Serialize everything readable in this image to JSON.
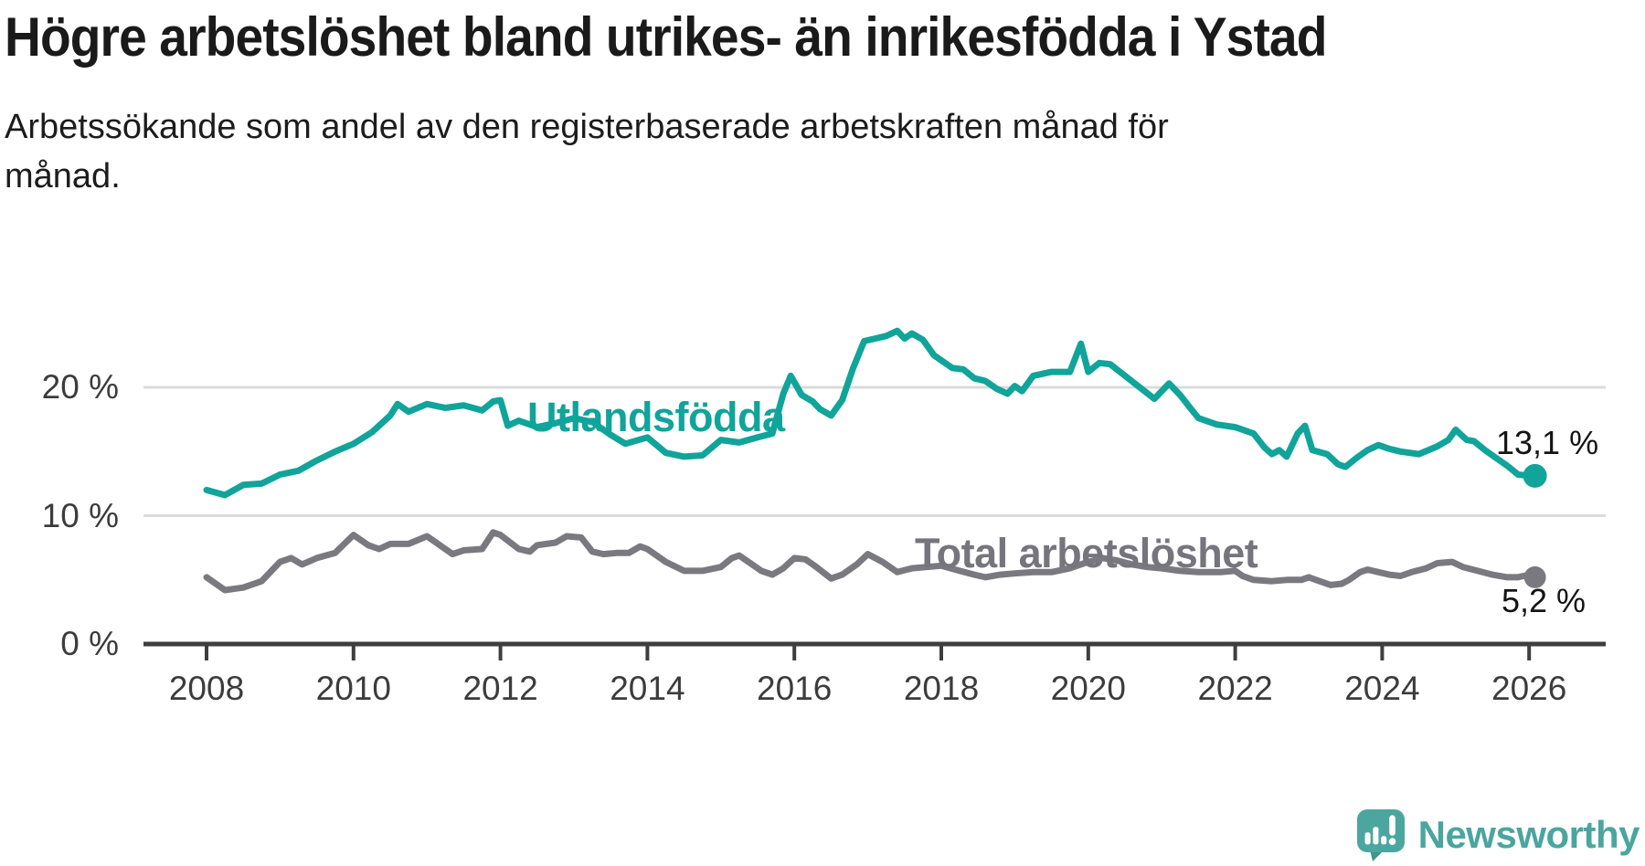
{
  "header": {
    "title": "Högre arbetslöshet bland utrikes- än inrikesfödda i Ystad",
    "subtitle_lines": [
      "Arbetssökande som andel av den registerbaserade arbetskraften månad för",
      "månad."
    ]
  },
  "footer": {
    "brand": "Newsworthy"
  },
  "chart_data": {
    "type": "line",
    "title": "Högre arbetslöshet bland utrikes- än inrikesfödda i Ystad",
    "subtitle": "Arbetssökande som andel av den registerbaserade arbetskraften månad för månad.",
    "xlabel": "",
    "ylabel": "",
    "unit": "%",
    "grid": "horizontal",
    "legend": "inline-labels",
    "xlim": [
      2007.5,
      2026.6
    ],
    "ylim": [
      0,
      26
    ],
    "x_axis": {
      "ticks": [
        2008,
        2010,
        2012,
        2014,
        2016,
        2018,
        2020,
        2022,
        2024,
        2026
      ]
    },
    "y_axis": {
      "ticks": [
        0,
        10,
        20
      ],
      "labels": [
        "0 %",
        "10 %",
        "20 %"
      ]
    },
    "style": {
      "grid_color": "#dbdbdb",
      "axis_color": "#3e3e3e",
      "background": "#ffffff"
    },
    "series": [
      {
        "name": "Utlandsfödda",
        "color": "#10a49a",
        "end_label": "13,1 %",
        "end_value": 13.1,
        "dot_radius": 13,
        "x": [
          2008.0,
          2008.25,
          2008.5,
          2008.75,
          2009.0,
          2009.25,
          2009.5,
          2009.75,
          2010.0,
          2010.25,
          2010.5,
          2010.6,
          2010.75,
          2011.0,
          2011.25,
          2011.5,
          2011.75,
          2011.9,
          2012.0,
          2012.1,
          2012.25,
          2012.5,
          2012.75,
          2013.0,
          2013.25,
          2013.5,
          2013.7,
          2014.0,
          2014.25,
          2014.5,
          2014.75,
          2015.0,
          2015.25,
          2015.5,
          2015.7,
          2015.85,
          2015.95,
          2016.1,
          2016.25,
          2016.35,
          2016.5,
          2016.65,
          2016.8,
          2016.95,
          2017.1,
          2017.25,
          2017.4,
          2017.5,
          2017.6,
          2017.75,
          2017.9,
          2018.0,
          2018.15,
          2018.3,
          2018.45,
          2018.6,
          2018.75,
          2018.9,
          2019.0,
          2019.1,
          2019.25,
          2019.5,
          2019.75,
          2019.9,
          2020.0,
          2020.15,
          2020.3,
          2020.5,
          2020.7,
          2020.9,
          2021.0,
          2021.1,
          2021.25,
          2021.4,
          2021.5,
          2021.75,
          2022.0,
          2022.25,
          2022.4,
          2022.5,
          2022.6,
          2022.7,
          2022.85,
          2022.95,
          2023.05,
          2023.25,
          2023.4,
          2023.5,
          2023.65,
          2023.8,
          2023.95,
          2024.1,
          2024.25,
          2024.5,
          2024.75,
          2024.9,
          2025.0,
          2025.15,
          2025.25,
          2025.4,
          2025.55,
          2025.7,
          2025.85,
          2026.0,
          2026.08
        ],
        "values": [
          12.0,
          11.6,
          12.4,
          12.5,
          13.2,
          13.5,
          14.3,
          15.0,
          15.6,
          16.5,
          17.8,
          18.7,
          18.1,
          18.7,
          18.4,
          18.6,
          18.2,
          18.9,
          19.0,
          17.0,
          17.4,
          16.9,
          17.2,
          17.6,
          17.3,
          16.3,
          15.6,
          16.1,
          14.9,
          14.6,
          14.7,
          15.9,
          15.7,
          16.1,
          16.4,
          19.5,
          20.9,
          19.4,
          18.9,
          18.3,
          17.8,
          19.0,
          21.5,
          23.6,
          23.8,
          24.0,
          24.4,
          23.8,
          24.2,
          23.7,
          22.5,
          22.1,
          21.5,
          21.4,
          20.7,
          20.5,
          19.9,
          19.5,
          20.1,
          19.7,
          20.9,
          21.2,
          21.2,
          23.4,
          21.2,
          21.9,
          21.8,
          20.9,
          20.0,
          19.1,
          19.7,
          20.3,
          19.4,
          18.3,
          17.6,
          17.1,
          16.9,
          16.4,
          15.3,
          14.8,
          15.1,
          14.6,
          16.4,
          17.0,
          15.1,
          14.8,
          14.0,
          13.8,
          14.5,
          15.1,
          15.5,
          15.2,
          15.0,
          14.8,
          15.4,
          15.9,
          16.7,
          15.9,
          15.8,
          15.1,
          14.5,
          13.9,
          13.2,
          13.1,
          13.1
        ]
      },
      {
        "name": "Total arbetslöshet",
        "color": "#7a7980",
        "label_color": "#76757e",
        "end_label": "5,2 %",
        "end_value": 5.2,
        "dot_radius": 12,
        "x": [
          2008.0,
          2008.25,
          2008.5,
          2008.75,
          2009.0,
          2009.15,
          2009.3,
          2009.5,
          2009.75,
          2010.0,
          2010.2,
          2010.35,
          2010.5,
          2010.75,
          2011.0,
          2011.2,
          2011.35,
          2011.5,
          2011.75,
          2011.9,
          2012.0,
          2012.25,
          2012.4,
          2012.5,
          2012.75,
          2012.9,
          2013.1,
          2013.25,
          2013.4,
          2013.6,
          2013.75,
          2013.9,
          2014.0,
          2014.25,
          2014.5,
          2014.75,
          2015.0,
          2015.15,
          2015.25,
          2015.4,
          2015.55,
          2015.7,
          2015.85,
          2016.0,
          2016.15,
          2016.3,
          2016.5,
          2016.65,
          2016.85,
          2017.0,
          2017.2,
          2017.4,
          2017.6,
          2017.8,
          2018.0,
          2018.25,
          2018.45,
          2018.6,
          2018.8,
          2019.0,
          2019.25,
          2019.5,
          2019.75,
          2020.0,
          2020.2,
          2020.4,
          2020.6,
          2020.8,
          2021.0,
          2021.25,
          2021.5,
          2021.8,
          2022.0,
          2022.1,
          2022.25,
          2022.5,
          2022.7,
          2022.9,
          2023.0,
          2023.1,
          2023.3,
          2023.45,
          2023.55,
          2023.7,
          2023.8,
          2023.95,
          2024.1,
          2024.25,
          2024.4,
          2024.6,
          2024.75,
          2024.95,
          2025.1,
          2025.3,
          2025.5,
          2025.7,
          2025.85,
          2026.0,
          2026.08
        ],
        "values": [
          5.2,
          4.2,
          4.4,
          4.9,
          6.4,
          6.7,
          6.2,
          6.7,
          7.1,
          8.5,
          7.7,
          7.4,
          7.8,
          7.8,
          8.4,
          7.6,
          7.0,
          7.3,
          7.4,
          8.7,
          8.5,
          7.4,
          7.2,
          7.7,
          7.9,
          8.4,
          8.3,
          7.2,
          7.0,
          7.1,
          7.1,
          7.6,
          7.4,
          6.4,
          5.7,
          5.7,
          6.0,
          6.7,
          6.9,
          6.3,
          5.7,
          5.4,
          5.9,
          6.7,
          6.6,
          6.0,
          5.1,
          5.4,
          6.2,
          7.0,
          6.4,
          5.6,
          5.9,
          6.0,
          6.1,
          5.7,
          5.4,
          5.2,
          5.4,
          5.5,
          5.6,
          5.6,
          5.9,
          6.4,
          6.7,
          6.5,
          6.2,
          6.0,
          5.9,
          5.7,
          5.6,
          5.6,
          5.7,
          5.3,
          5.0,
          4.9,
          5.0,
          5.0,
          5.2,
          5.0,
          4.6,
          4.7,
          5.0,
          5.6,
          5.8,
          5.6,
          5.4,
          5.3,
          5.6,
          5.9,
          6.3,
          6.4,
          6.0,
          5.7,
          5.4,
          5.2,
          5.2,
          5.4,
          5.2
        ]
      }
    ]
  }
}
